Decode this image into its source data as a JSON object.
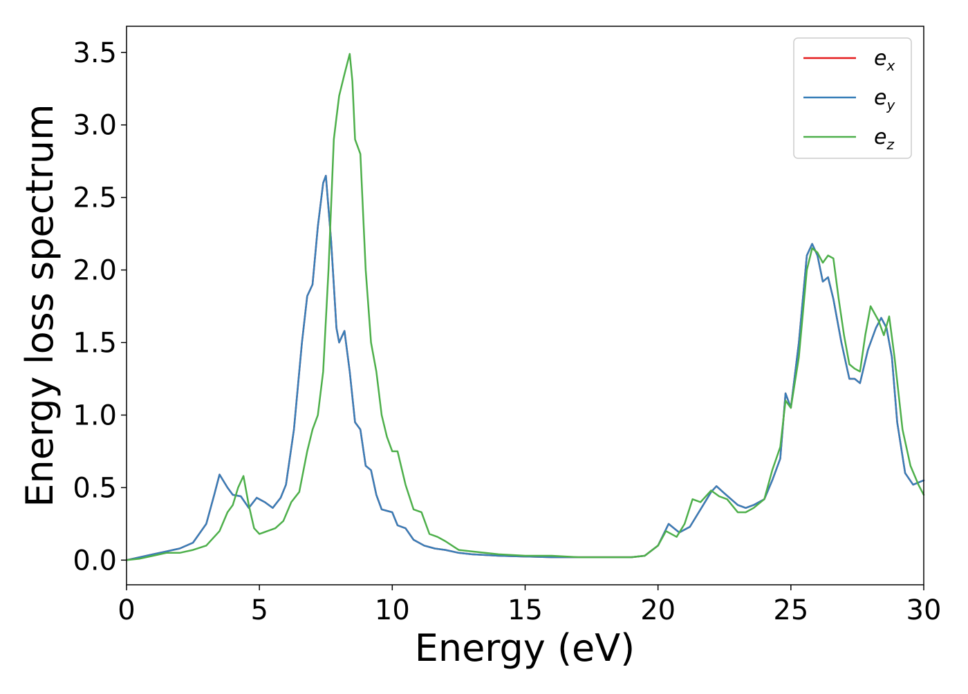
{
  "chart_data": {
    "type": "line",
    "title": "",
    "xlabel": "Energy (eV)",
    "ylabel": "Energy loss spectrum",
    "xlim": [
      0,
      30
    ],
    "ylim": [
      -0.17,
      3.68
    ],
    "xticks": [
      0,
      5,
      10,
      15,
      20,
      25,
      30
    ],
    "xtick_labels": [
      "0",
      "5",
      "10",
      "15",
      "20",
      "25",
      "30"
    ],
    "yticks": [
      0.0,
      0.5,
      1.0,
      1.5,
      2.0,
      2.5,
      3.0,
      3.5
    ],
    "ytick_labels": [
      "0.0",
      "0.5",
      "1.0",
      "1.5",
      "2.0",
      "2.5",
      "3.0",
      "3.5"
    ],
    "grid": false,
    "legend_position": "top-right",
    "series": [
      {
        "name": "e",
        "subscript": "x",
        "color": "#e41a1c",
        "x": [
          0,
          0.5,
          1.0,
          1.5,
          2.0,
          2.5,
          3.0,
          3.3,
          3.5,
          3.8,
          4.0,
          4.3,
          4.6,
          4.9,
          5.2,
          5.5,
          5.8,
          6.0,
          6.3,
          6.6,
          6.8,
          7.0,
          7.2,
          7.4,
          7.5,
          7.7,
          7.9,
          8.0,
          8.2,
          8.4,
          8.6,
          8.8,
          9.0,
          9.2,
          9.4,
          9.6,
          9.8,
          10.0,
          10.2,
          10.5,
          10.8,
          11.2,
          11.6,
          12.0,
          12.5,
          13.0,
          14.0,
          15.0,
          16.0,
          17.0,
          18.0,
          19.0,
          19.5,
          20.0,
          20.4,
          20.8,
          21.2,
          21.6,
          22.0,
          22.2,
          22.5,
          23.0,
          23.3,
          23.6,
          24.0,
          24.3,
          24.6,
          24.8,
          25.0,
          25.3,
          25.6,
          25.8,
          26.0,
          26.2,
          26.4,
          26.6,
          26.9,
          27.2,
          27.4,
          27.6,
          27.9,
          28.2,
          28.4,
          28.6,
          28.8,
          29.0,
          29.3,
          29.6,
          30.0
        ],
        "y": [
          0.0,
          0.02,
          0.04,
          0.06,
          0.08,
          0.12,
          0.25,
          0.45,
          0.59,
          0.5,
          0.45,
          0.44,
          0.36,
          0.43,
          0.4,
          0.36,
          0.43,
          0.52,
          0.9,
          1.5,
          1.82,
          1.9,
          2.3,
          2.6,
          2.65,
          2.2,
          1.6,
          1.5,
          1.58,
          1.3,
          0.95,
          0.9,
          0.65,
          0.62,
          0.45,
          0.35,
          0.34,
          0.33,
          0.24,
          0.22,
          0.14,
          0.1,
          0.08,
          0.07,
          0.05,
          0.04,
          0.03,
          0.025,
          0.02,
          0.02,
          0.02,
          0.02,
          0.03,
          0.1,
          0.25,
          0.19,
          0.23,
          0.35,
          0.47,
          0.51,
          0.46,
          0.38,
          0.36,
          0.38,
          0.42,
          0.55,
          0.7,
          1.15,
          1.05,
          1.5,
          2.1,
          2.18,
          2.1,
          1.92,
          1.95,
          1.8,
          1.5,
          1.25,
          1.25,
          1.22,
          1.45,
          1.6,
          1.67,
          1.6,
          1.4,
          0.95,
          0.6,
          0.52,
          0.55
        ]
      },
      {
        "name": "e",
        "subscript": "y",
        "color": "#377eb8",
        "x": [
          0,
          0.5,
          1.0,
          1.5,
          2.0,
          2.5,
          3.0,
          3.3,
          3.5,
          3.8,
          4.0,
          4.3,
          4.6,
          4.9,
          5.2,
          5.5,
          5.8,
          6.0,
          6.3,
          6.6,
          6.8,
          7.0,
          7.2,
          7.4,
          7.5,
          7.7,
          7.9,
          8.0,
          8.2,
          8.4,
          8.6,
          8.8,
          9.0,
          9.2,
          9.4,
          9.6,
          9.8,
          10.0,
          10.2,
          10.5,
          10.8,
          11.2,
          11.6,
          12.0,
          12.5,
          13.0,
          14.0,
          15.0,
          16.0,
          17.0,
          18.0,
          19.0,
          19.5,
          20.0,
          20.4,
          20.8,
          21.2,
          21.6,
          22.0,
          22.2,
          22.5,
          23.0,
          23.3,
          23.6,
          24.0,
          24.3,
          24.6,
          24.8,
          25.0,
          25.3,
          25.6,
          25.8,
          26.0,
          26.2,
          26.4,
          26.6,
          26.9,
          27.2,
          27.4,
          27.6,
          27.9,
          28.2,
          28.4,
          28.6,
          28.8,
          29.0,
          29.3,
          29.6,
          30.0
        ],
        "y": [
          0.0,
          0.02,
          0.04,
          0.06,
          0.08,
          0.12,
          0.25,
          0.45,
          0.59,
          0.5,
          0.45,
          0.44,
          0.36,
          0.43,
          0.4,
          0.36,
          0.43,
          0.52,
          0.9,
          1.5,
          1.82,
          1.9,
          2.3,
          2.6,
          2.65,
          2.2,
          1.6,
          1.5,
          1.58,
          1.3,
          0.95,
          0.9,
          0.65,
          0.62,
          0.45,
          0.35,
          0.34,
          0.33,
          0.24,
          0.22,
          0.14,
          0.1,
          0.08,
          0.07,
          0.05,
          0.04,
          0.03,
          0.025,
          0.02,
          0.02,
          0.02,
          0.02,
          0.03,
          0.1,
          0.25,
          0.19,
          0.23,
          0.35,
          0.47,
          0.51,
          0.46,
          0.38,
          0.36,
          0.38,
          0.42,
          0.55,
          0.7,
          1.15,
          1.05,
          1.5,
          2.1,
          2.18,
          2.1,
          1.92,
          1.95,
          1.8,
          1.5,
          1.25,
          1.25,
          1.22,
          1.45,
          1.6,
          1.67,
          1.6,
          1.4,
          0.95,
          0.6,
          0.52,
          0.55
        ]
      },
      {
        "name": "e",
        "subscript": "z",
        "color": "#4daf4a",
        "x": [
          0,
          0.5,
          1.0,
          1.5,
          2.0,
          2.5,
          3.0,
          3.5,
          3.8,
          4.0,
          4.2,
          4.4,
          4.6,
          4.8,
          5.0,
          5.3,
          5.6,
          5.9,
          6.2,
          6.5,
          6.8,
          7.0,
          7.2,
          7.4,
          7.6,
          7.8,
          7.9,
          8.0,
          8.2,
          8.3,
          8.4,
          8.5,
          8.6,
          8.8,
          9.0,
          9.2,
          9.4,
          9.6,
          9.8,
          10.0,
          10.2,
          10.5,
          10.8,
          11.1,
          11.4,
          11.7,
          12.0,
          12.5,
          13.0,
          14.0,
          15.0,
          16.0,
          17.0,
          18.0,
          19.0,
          19.5,
          20.0,
          20.3,
          20.7,
          21.0,
          21.3,
          21.6,
          22.0,
          22.3,
          22.6,
          23.0,
          23.3,
          23.6,
          24.0,
          24.3,
          24.6,
          24.8,
          25.0,
          25.3,
          25.6,
          25.8,
          26.0,
          26.2,
          26.4,
          26.6,
          26.8,
          27.0,
          27.2,
          27.4,
          27.6,
          27.8,
          28.0,
          28.3,
          28.5,
          28.7,
          28.9,
          29.2,
          29.5,
          29.8,
          30.0
        ],
        "y": [
          0.0,
          0.01,
          0.03,
          0.05,
          0.05,
          0.07,
          0.1,
          0.2,
          0.33,
          0.38,
          0.5,
          0.58,
          0.38,
          0.22,
          0.18,
          0.2,
          0.22,
          0.27,
          0.4,
          0.47,
          0.75,
          0.9,
          1.0,
          1.3,
          2.0,
          2.9,
          3.05,
          3.2,
          3.35,
          3.42,
          3.49,
          3.3,
          2.9,
          2.8,
          2.0,
          1.5,
          1.3,
          1.0,
          0.85,
          0.75,
          0.75,
          0.52,
          0.35,
          0.33,
          0.18,
          0.16,
          0.13,
          0.07,
          0.06,
          0.04,
          0.03,
          0.03,
          0.02,
          0.02,
          0.02,
          0.03,
          0.1,
          0.2,
          0.16,
          0.25,
          0.42,
          0.4,
          0.48,
          0.44,
          0.42,
          0.33,
          0.33,
          0.36,
          0.42,
          0.62,
          0.78,
          1.1,
          1.05,
          1.4,
          2.0,
          2.15,
          2.12,
          2.05,
          2.1,
          2.08,
          1.8,
          1.55,
          1.35,
          1.32,
          1.3,
          1.55,
          1.75,
          1.65,
          1.55,
          1.68,
          1.4,
          0.9,
          0.65,
          0.52,
          0.45
        ]
      }
    ]
  }
}
